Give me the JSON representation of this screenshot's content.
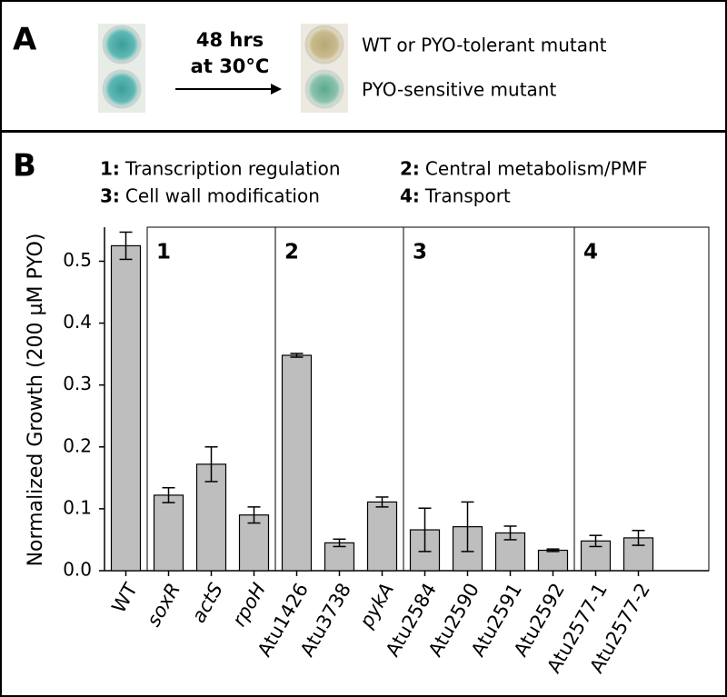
{
  "panel_a": {
    "label": "A",
    "condition": [
      "48 hrs",
      "at 30°C"
    ],
    "outcomes": [
      "WT or PYO-tolerant mutant",
      "PYO-sensitive mutant"
    ]
  },
  "chart_data": {
    "type": "bar",
    "panel_label": "B",
    "ylabel": "Normalized Growth (200 µM PYO)",
    "categories": [
      "WT",
      "soxR",
      "actS",
      "rpoH",
      "Atu1426",
      "Atu3738",
      "pykA",
      "Atu2584",
      "Atu2590",
      "Atu2591",
      "Atu2592",
      "Atu2577-1",
      "Atu2577-2"
    ],
    "italic": [
      false,
      true,
      true,
      true,
      false,
      false,
      true,
      false,
      false,
      false,
      false,
      false,
      false
    ],
    "values": [
      0.525,
      0.122,
      0.172,
      0.09,
      0.348,
      0.045,
      0.111,
      0.066,
      0.071,
      0.061,
      0.033,
      0.048,
      0.053
    ],
    "errors": [
      0.022,
      0.012,
      0.028,
      0.013,
      0.003,
      0.006,
      0.008,
      0.035,
      0.04,
      0.011,
      0.002,
      0.009,
      0.012
    ],
    "color": "#bebebe",
    "groups": [
      {
        "key": "1:",
        "label": "1",
        "name": "Transcription regulation",
        "members": [
          "soxR",
          "actS",
          "rpoH"
        ]
      },
      {
        "key": "2:",
        "label": "2",
        "name": "Central metabolism/PMF",
        "members": [
          "Atu1426",
          "Atu3738",
          "pykA"
        ]
      },
      {
        "key": "3:",
        "label": "3",
        "name": "Cell wall modification",
        "members": [
          "Atu2584",
          "Atu2590",
          "Atu2591",
          "Atu2592"
        ]
      },
      {
        "key": "4:",
        "label": "4",
        "name": "Transport",
        "members": [
          "Atu2577-1",
          "Atu2577-2"
        ]
      }
    ],
    "ylim": [
      0,
      0.555
    ],
    "yticks": [
      {
        "value": 0,
        "label": "0.0"
      },
      0.1,
      0.2,
      0.3,
      0.4,
      0.5
    ]
  }
}
